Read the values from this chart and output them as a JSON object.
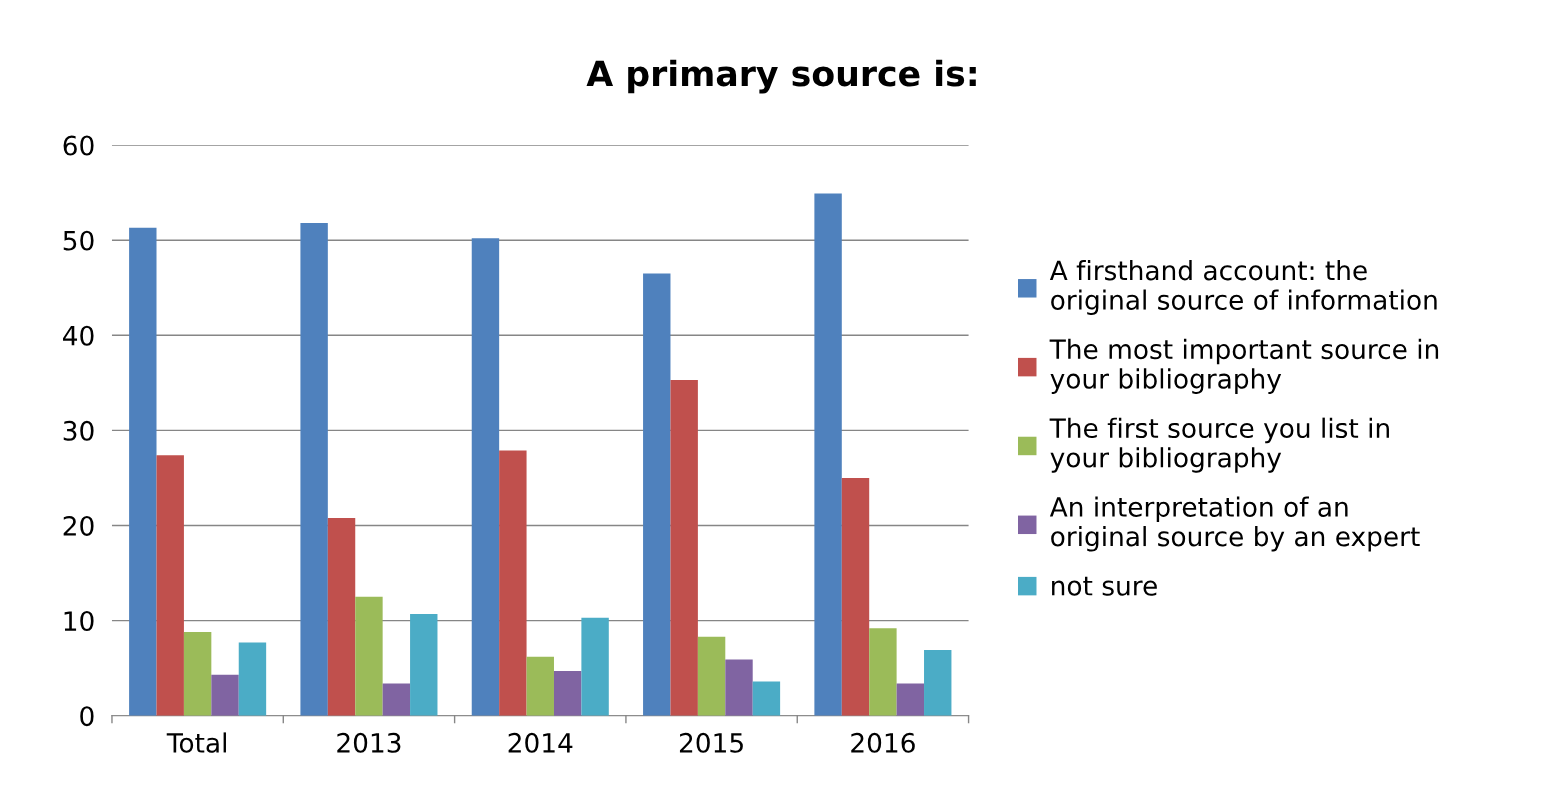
{
  "chart_data": {
    "type": "bar",
    "title": "A primary source is:",
    "categories": [
      "Total",
      "2013",
      "2014",
      "2015",
      "2016"
    ],
    "series": [
      {
        "name": "A firsthand account: the original source of information",
        "color": "#4f81bd",
        "values": [
          51.3,
          51.8,
          50.2,
          46.5,
          54.9
        ]
      },
      {
        "name": "The most important source in your bibliography",
        "color": "#c0504d",
        "values": [
          27.4,
          20.8,
          27.9,
          35.3,
          25.0
        ]
      },
      {
        "name": "The first source you list in your bibliography",
        "color": "#9bbb59",
        "values": [
          8.8,
          12.5,
          6.2,
          8.3,
          9.2
        ]
      },
      {
        "name": "An interpretation of an original source by an expert",
        "color": "#8064a2",
        "values": [
          4.3,
          3.4,
          4.7,
          5.9,
          3.4
        ]
      },
      {
        "name": "not sure",
        "color": "#4bacc6",
        "values": [
          7.7,
          10.7,
          10.3,
          3.6,
          6.9
        ]
      }
    ],
    "ylim": [
      0,
      60
    ],
    "yticks": [
      0,
      10,
      20,
      30,
      40,
      50,
      60
    ],
    "grid": "y",
    "legend": "right"
  }
}
